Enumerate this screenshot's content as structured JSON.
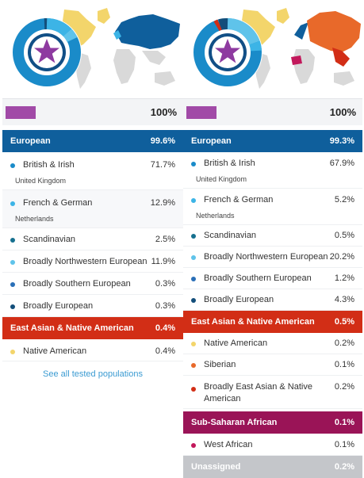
{
  "left": {
    "summary_pct": "100%",
    "european": {
      "title": "European",
      "pct": "99.6%",
      "rows": [
        {
          "name": "British & Irish",
          "pct": "71.7%",
          "sub": "United Kingdom",
          "color": "#1a8bc9"
        },
        {
          "name": "French & German",
          "pct": "12.9%",
          "sub": "Netherlands",
          "color": "#3cb4e6"
        },
        {
          "name": "Scandinavian",
          "pct": "2.5%",
          "color": "#16708f"
        },
        {
          "name": "Broadly Northwestern European",
          "pct": "11.9%",
          "color": "#5fc3ea"
        },
        {
          "name": "Broadly Southern European",
          "pct": "0.3%",
          "color": "#2a6fb7"
        },
        {
          "name": "Broadly European",
          "pct": "0.3%",
          "color": "#134e7a"
        }
      ]
    },
    "east_asian": {
      "title": "East Asian & Native American",
      "pct": "0.4%",
      "rows": [
        {
          "name": "Native American",
          "pct": "0.4%",
          "color": "#f3d56b"
        }
      ]
    },
    "see_all": "See all tested populations"
  },
  "right": {
    "summary_pct": "100%",
    "european": {
      "title": "European",
      "pct": "99.3%",
      "rows": [
        {
          "name": "British & Irish",
          "pct": "67.9%",
          "sub": "United Kingdom",
          "color": "#1a8bc9"
        },
        {
          "name": "French & German",
          "pct": "5.2%",
          "sub": "Netherlands",
          "color": "#3cb4e6"
        },
        {
          "name": "Scandinavian",
          "pct": "0.5%",
          "color": "#16708f"
        },
        {
          "name": "Broadly Northwestern European",
          "pct": "20.2%",
          "color": "#5fc3ea"
        },
        {
          "name": "Broadly Southern European",
          "pct": "1.2%",
          "color": "#2a6fb7"
        },
        {
          "name": "Broadly European",
          "pct": "4.3%",
          "color": "#134e7a"
        }
      ]
    },
    "east_asian": {
      "title": "East Asian & Native American",
      "pct": "0.5%",
      "rows": [
        {
          "name": "Native American",
          "pct": "0.2%",
          "color": "#f3d56b"
        },
        {
          "name": "Siberian",
          "pct": "0.1%",
          "color": "#e8692a"
        },
        {
          "name": "Broadly East Asian & Native American",
          "pct": "0.2%",
          "color": "#d22e16"
        }
      ]
    },
    "sub_saharan": {
      "title": "Sub-Saharan African",
      "pct": "0.1%",
      "rows": [
        {
          "name": "West African",
          "pct": "0.1%",
          "color": "#c2185b"
        }
      ]
    },
    "unassigned": {
      "title": "Unassigned",
      "pct": "0.2%"
    }
  },
  "colors": {
    "european": "#0f5f9c",
    "east_asian": "#d22e16",
    "sub_saharan": "#9a1457",
    "unassigned": "#c4c6ca",
    "summary_swatch": "#a14aa7",
    "link": "#3b9bd2"
  },
  "icons": [
    "world-map-icon",
    "ancestry-donut-icon",
    "star-icon"
  ]
}
